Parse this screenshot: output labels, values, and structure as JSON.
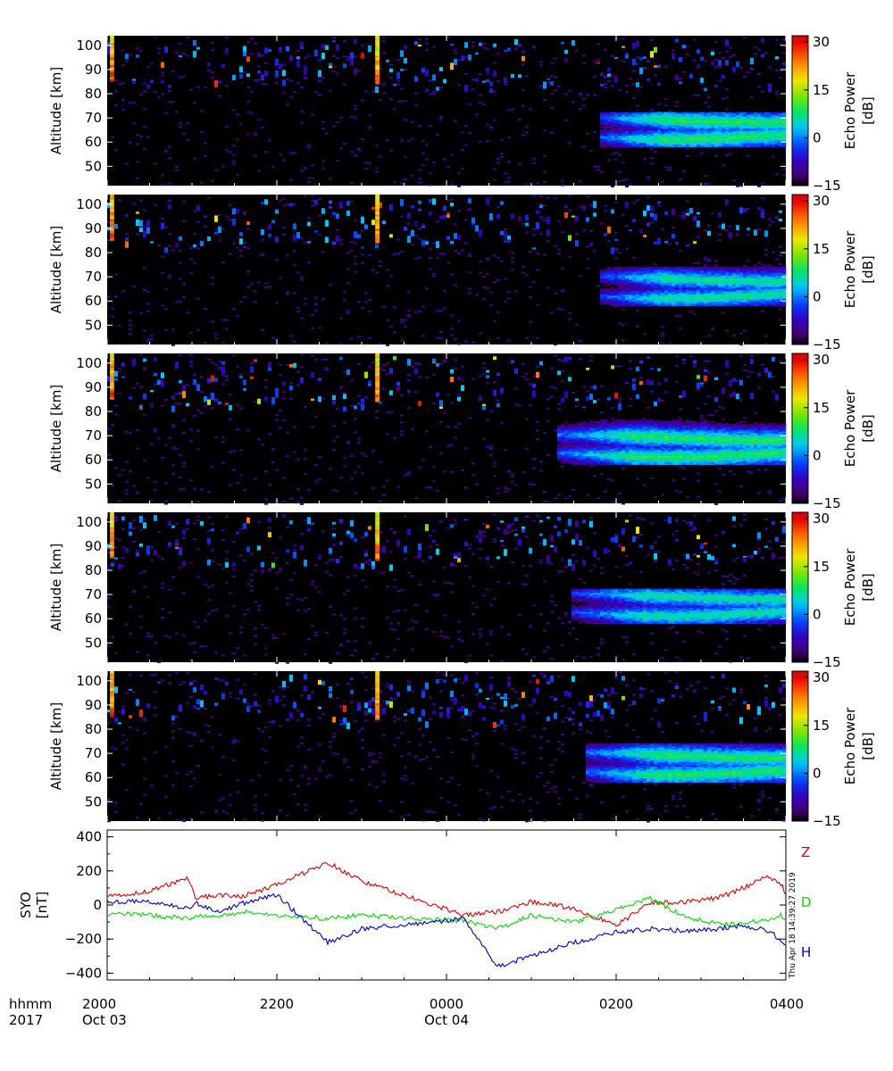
{
  "chart_data": [
    {
      "type": "heatmap",
      "panel": 1,
      "ylabel": "Altitude [km]",
      "yticks": [
        "100",
        "90",
        "80",
        "70",
        "60",
        "50"
      ],
      "ylim": [
        42,
        104
      ],
      "colorbar": {
        "label_1": "Echo Power",
        "label_2": "[dB]",
        "ticks": [
          "30",
          "15",
          "0",
          "−15"
        ],
        "range": [
          -15,
          32
        ]
      },
      "features": [
        {
          "time_range": [
            "0150",
            "0400"
          ],
          "altitude_range": [
            58,
            72
          ],
          "power_db": [
            -5,
            12
          ],
          "desc": "main echo layer"
        },
        {
          "time_range": [
            "2000",
            "0400"
          ],
          "altitude_range": [
            80,
            104
          ],
          "power_db": [
            -10,
            30
          ],
          "desc": "sporadic upper echoes"
        }
      ]
    },
    {
      "type": "heatmap",
      "panel": 2,
      "ylabel": "Altitude [km]",
      "yticks": [
        "100",
        "90",
        "80",
        "70",
        "60",
        "50"
      ],
      "ylim": [
        42,
        104
      ],
      "colorbar": {
        "label_1": "Echo Power",
        "label_2": "[dB]",
        "ticks": [
          "30",
          "15",
          "0",
          "−15"
        ],
        "range": [
          -15,
          32
        ]
      },
      "features": [
        {
          "time_range": [
            "0150",
            "0400"
          ],
          "altitude_range": [
            58,
            74
          ],
          "power_db": [
            -5,
            10
          ]
        }
      ]
    },
    {
      "type": "heatmap",
      "panel": 3,
      "ylabel": "Altitude [km]",
      "yticks": [
        "100",
        "90",
        "80",
        "70",
        "60",
        "50"
      ],
      "ylim": [
        42,
        104
      ],
      "colorbar": {
        "label_1": "Echo Power",
        "label_2": "[dB]",
        "ticks": [
          "30",
          "15",
          "0",
          "−15"
        ],
        "range": [
          -15,
          32
        ]
      },
      "features": [
        {
          "time_range": [
            "0120",
            "0400"
          ],
          "altitude_range": [
            58,
            76
          ],
          "power_db": [
            -5,
            12
          ]
        }
      ]
    },
    {
      "type": "heatmap",
      "panel": 4,
      "ylabel": "Altitude [km]",
      "yticks": [
        "100",
        "90",
        "80",
        "70",
        "60",
        "50"
      ],
      "ylim": [
        42,
        104
      ],
      "colorbar": {
        "label_1": "Echo Power",
        "label_2": "[dB]",
        "ticks": [
          "30",
          "15",
          "0",
          "−15"
        ],
        "range": [
          -15,
          32
        ]
      },
      "features": [
        {
          "time_range": [
            "0130",
            "0400"
          ],
          "altitude_range": [
            58,
            72
          ],
          "power_db": [
            -5,
            10
          ]
        }
      ]
    },
    {
      "type": "heatmap",
      "panel": 5,
      "ylabel": "Altitude [km]",
      "yticks": [
        "100",
        "90",
        "80",
        "70",
        "60",
        "50"
      ],
      "ylim": [
        42,
        104
      ],
      "colorbar": {
        "label_1": "Echo Power",
        "label_2": "[dB]",
        "ticks": [
          "30",
          "15",
          "0",
          "−15"
        ],
        "range": [
          -15,
          32
        ]
      },
      "features": [
        {
          "time_range": [
            "0140",
            "0400"
          ],
          "altitude_range": [
            58,
            74
          ],
          "power_db": [
            -5,
            12
          ]
        }
      ]
    },
    {
      "type": "line",
      "panel": 6,
      "ylabel_1": "SYO",
      "ylabel_2": "[nT]",
      "yticks": [
        "400",
        "200",
        "0",
        "−200",
        "−400"
      ],
      "ylim": [
        -440,
        440
      ],
      "x_hours_since_2000": [
        0,
        0.5,
        0.95,
        1.05,
        1.3,
        1.6,
        2.0,
        2.6,
        3.0,
        3.6,
        4.2,
        4.6,
        5.0,
        5.5,
        6.0,
        6.4,
        6.8,
        7.2,
        7.5,
        7.8,
        7.95,
        8.0
      ],
      "series": [
        {
          "name": "Z",
          "color": "#dd0000",
          "values": [
            50,
            80,
            160,
            40,
            60,
            50,
            120,
            250,
            140,
            40,
            -60,
            -40,
            20,
            -20,
            -120,
            10,
            20,
            40,
            100,
            170,
            120,
            60
          ]
        },
        {
          "name": "D",
          "color": "#00dd00",
          "values": [
            -50,
            -60,
            -80,
            -60,
            -70,
            -40,
            -60,
            -80,
            -60,
            -80,
            -90,
            -140,
            -60,
            -100,
            -30,
            40,
            -70,
            -110,
            -110,
            -80,
            -60,
            -100
          ]
        },
        {
          "name": "H",
          "color": "#0000cc",
          "values": [
            20,
            20,
            -20,
            10,
            -40,
            10,
            60,
            -220,
            -140,
            -110,
            -80,
            -360,
            -300,
            -220,
            -160,
            -140,
            -150,
            -140,
            -120,
            -150,
            -210,
            -250
          ]
        }
      ],
      "side_labels": {
        "z": "Z",
        "d": "D",
        "h": "H"
      },
      "timestamp": "Thu Apr 18 14:39:27 2019"
    }
  ],
  "x_axis": {
    "row_label_1": "hhmm",
    "row_label_2": "2017",
    "ticks": [
      {
        "label": "2000",
        "date": "Oct 03"
      },
      {
        "label": "2200",
        "date": ""
      },
      {
        "label": "0000",
        "date": "Oct 04"
      },
      {
        "label": "0200",
        "date": ""
      },
      {
        "label": "0400",
        "date": ""
      }
    ]
  }
}
